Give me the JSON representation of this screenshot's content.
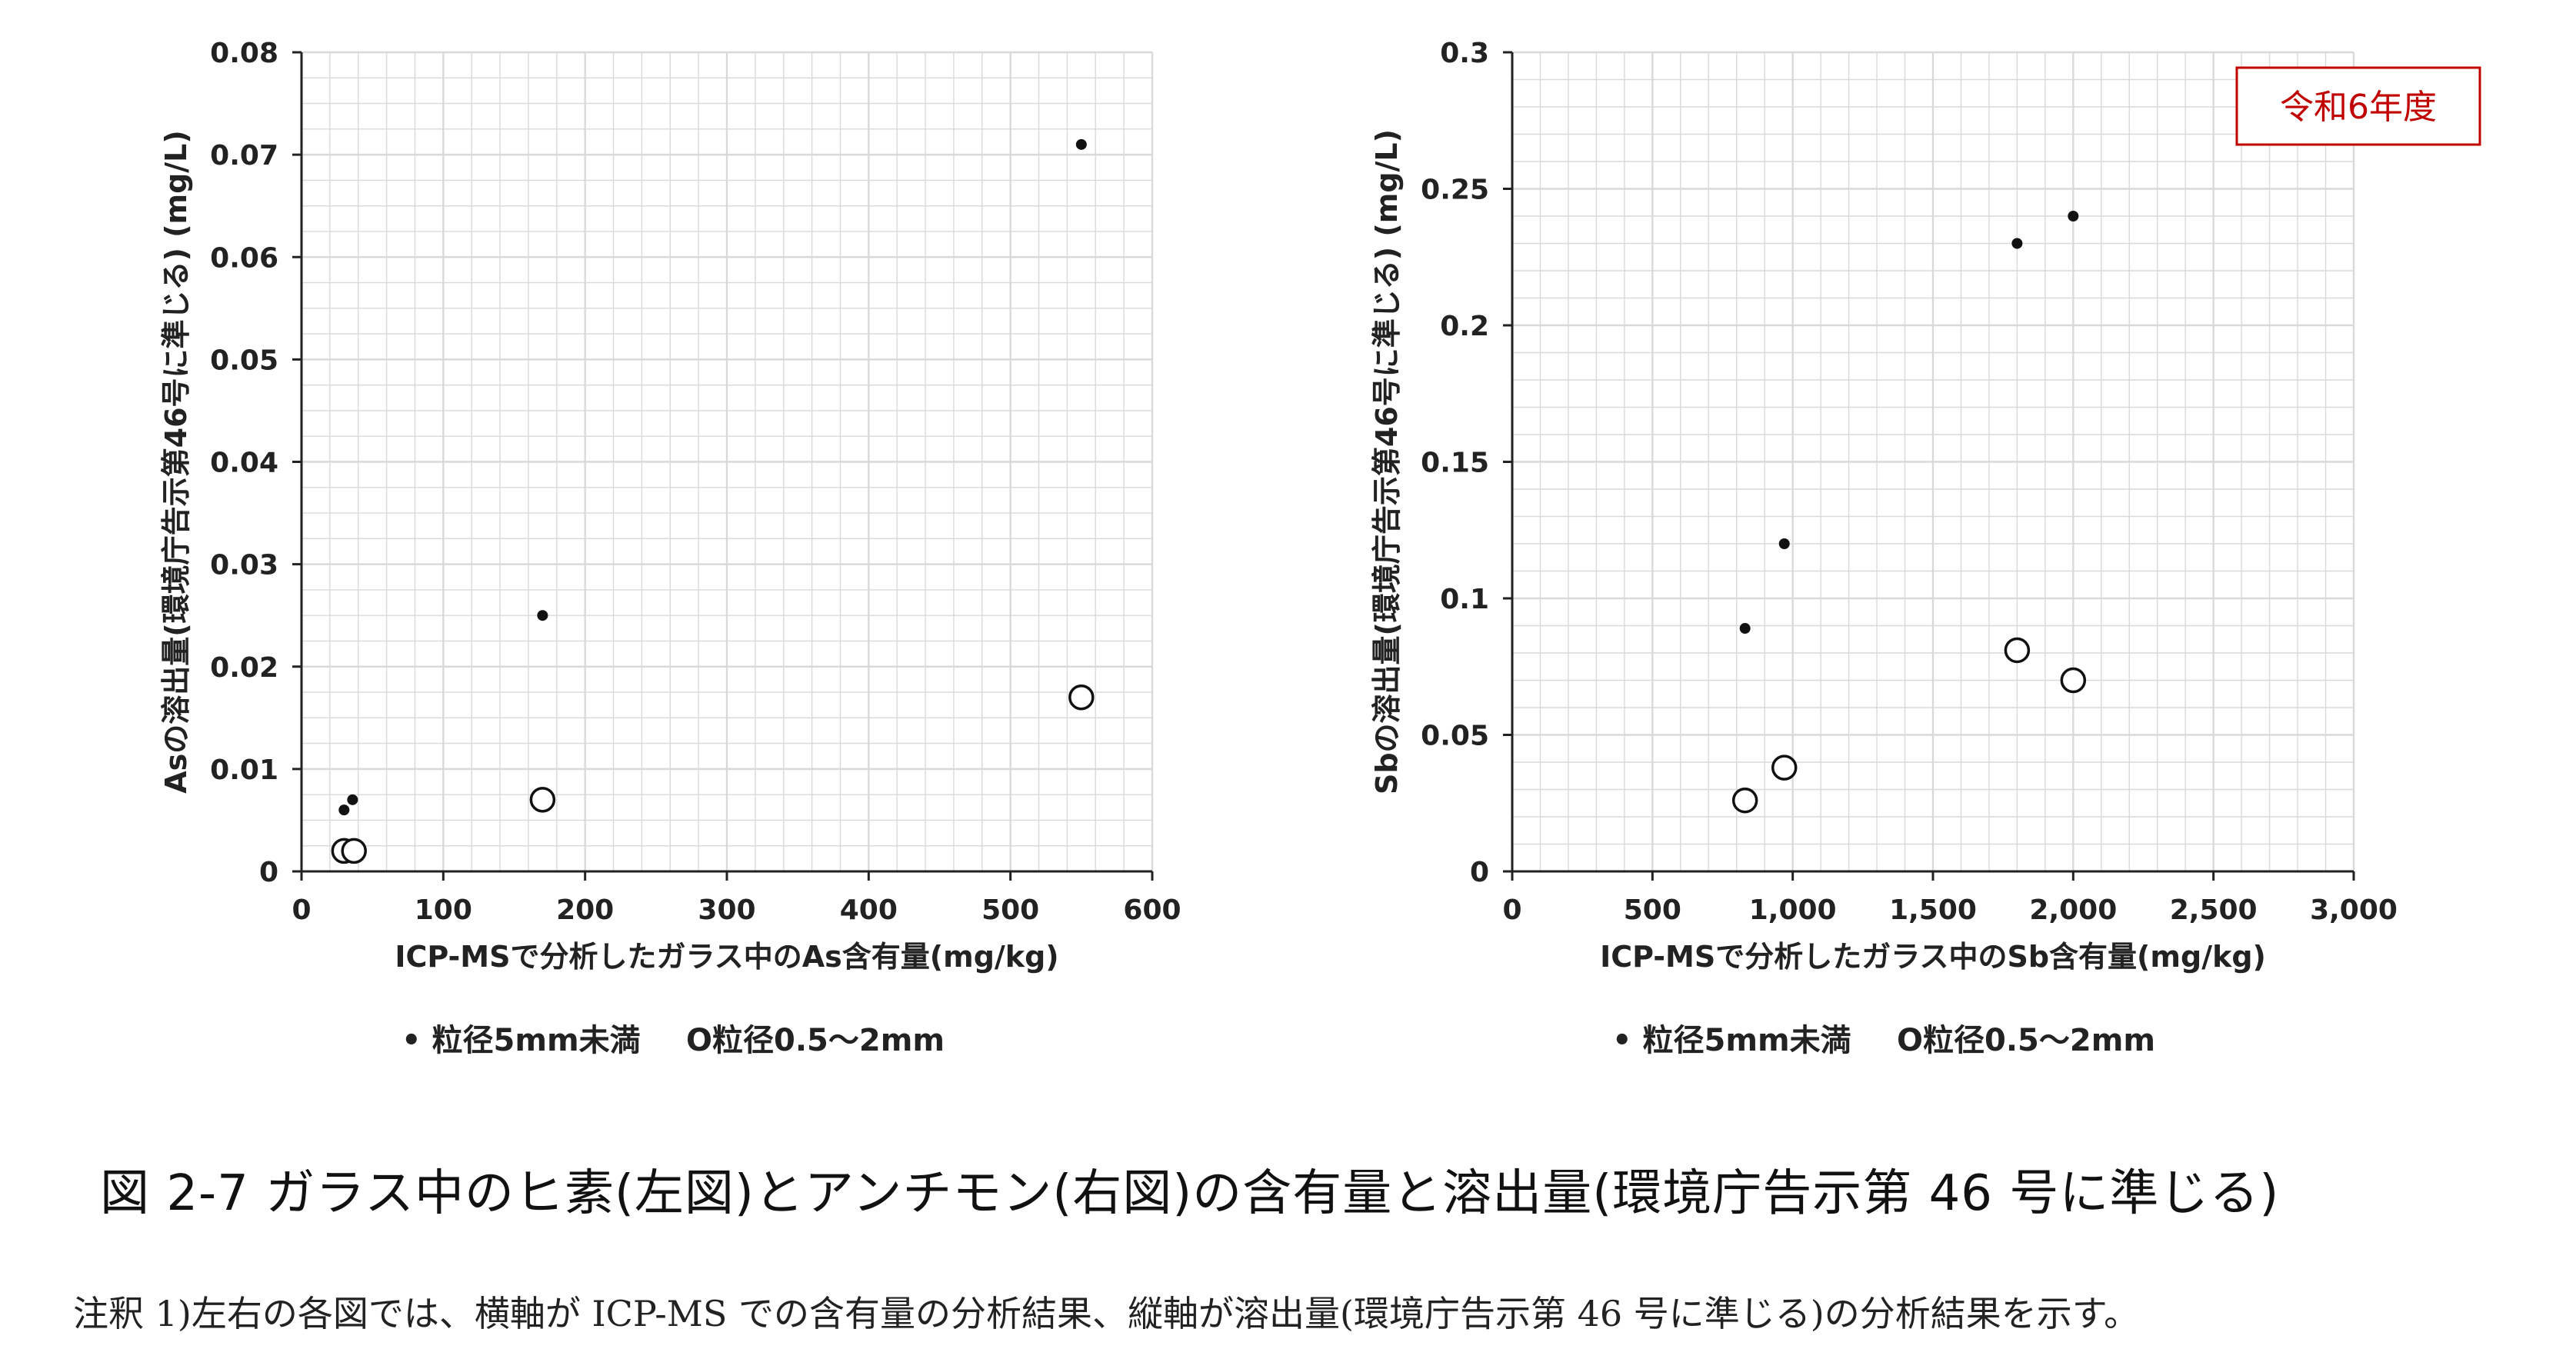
{
  "chart_data": [
    {
      "type": "scatter",
      "xlabel": "ICP-MSで分析したガラス中のAs含有量(mg/kg)",
      "ylabel": "Asの溶出量(環境庁告示第46号に準じる) (mg/L)",
      "xlim": [
        0,
        600
      ],
      "ylim": [
        0,
        0.08
      ],
      "x_ticks": [
        "0",
        "100",
        "200",
        "300",
        "400",
        "500",
        "600"
      ],
      "y_ticks": [
        "0",
        "0.01",
        "0.02",
        "0.03",
        "0.04",
        "0.05",
        "0.06",
        "0.07",
        "0.08"
      ],
      "grid": true,
      "series": [
        {
          "name": "粒径5mm未満",
          "marker": "filled-small",
          "points": [
            [
              30,
              0.006
            ],
            [
              36,
              0.007
            ],
            [
              170,
              0.025
            ],
            [
              550,
              0.071
            ]
          ]
        },
        {
          "name": "粒径0.5～2mm",
          "marker": "open-circle",
          "points": [
            [
              30,
              0.002
            ],
            [
              37,
              0.002
            ],
            [
              170,
              0.007
            ],
            [
              550,
              0.017
            ]
          ]
        }
      ],
      "legend": [
        "• 粒径5mm未満",
        "O粒径0.5～2mm"
      ]
    },
    {
      "type": "scatter",
      "xlabel": "ICP-MSで分析したガラス中のSb含有量(mg/kg)",
      "ylabel": "Sbの溶出量(環境庁告示第46号に準じる) (mg/L)",
      "xlim": [
        0,
        3000
      ],
      "ylim": [
        0,
        0.3
      ],
      "x_ticks": [
        "0",
        "500",
        "1,000",
        "1,500",
        "2,000",
        "2,500",
        "3,000"
      ],
      "y_ticks": [
        "0",
        "0.05",
        "0.1",
        "0.15",
        "0.2",
        "0.25",
        "0.3"
      ],
      "grid": true,
      "annotation": "令和6年度",
      "series": [
        {
          "name": "粒径5mm未満",
          "marker": "filled-small",
          "points": [
            [
              830,
              0.089
            ],
            [
              970,
              0.12
            ],
            [
              1800,
              0.23
            ],
            [
              2000,
              0.24
            ]
          ]
        },
        {
          "name": "粒径0.5～2mm",
          "marker": "open-circle",
          "points": [
            [
              830,
              0.026
            ],
            [
              970,
              0.038
            ],
            [
              1800,
              0.081
            ],
            [
              2000,
              0.07
            ]
          ]
        }
      ],
      "legend": [
        "• 粒径5mm未満",
        "O粒径0.5～2mm"
      ]
    }
  ],
  "caption": "図 2-7  ガラス中のヒ素(左図)とアンチモン(右図)の含有量と溶出量(環境庁告示第 46 号に準じる)",
  "note": "注釈 1)左右の各図では、横軸が ICP-MS での含有量の分析結果、縦軸が溶出量(環境庁告示第 46 号に準じる)の分析結果を示す。",
  "colors": {
    "axis": "#222222",
    "grid": "#d9d9d9",
    "badge": "#c00000"
  }
}
